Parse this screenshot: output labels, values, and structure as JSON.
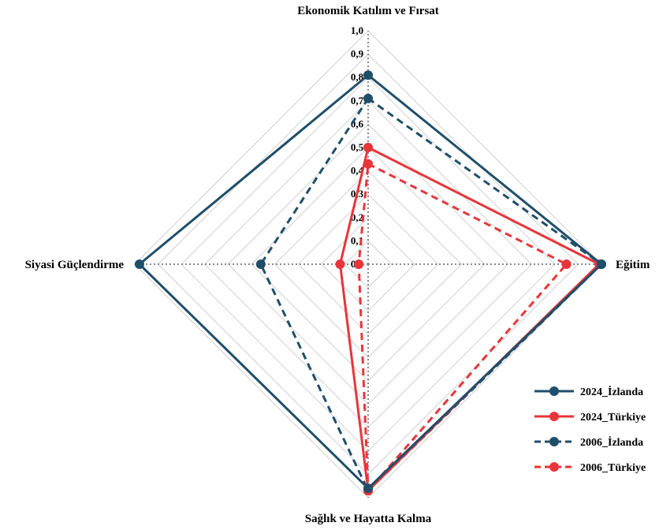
{
  "chart_data": {
    "type": "radar",
    "title": "",
    "axes": [
      "Ekonomik Katılım ve Fırsat",
      "Eğitim",
      "Sağlık ve Hayatta Kalma",
      "Siyasi Güçlendirme"
    ],
    "rlim": [
      0,
      1
    ],
    "ticks": [
      "0,0",
      "0,1",
      "0,2",
      "0,3",
      "0,4",
      "0,5",
      "0,6",
      "0,7",
      "0,8",
      "0,9",
      "1,0"
    ],
    "grid": true,
    "legend_position": "bottom-right",
    "series": [
      {
        "name": "2024_İzlanda",
        "values": [
          0.81,
          1.0,
          0.96,
          0.98
        ],
        "color": "#1f4e69",
        "dash": "solid"
      },
      {
        "name": "2024_Türkiye",
        "values": [
          0.5,
          0.99,
          0.97,
          0.12
        ],
        "color": "#e8353a",
        "dash": "solid"
      },
      {
        "name": "2006_İzlanda",
        "values": [
          0.71,
          1.0,
          0.97,
          0.46
        ],
        "color": "#1f4e69",
        "dash": "dashed"
      },
      {
        "name": "2006_Türkiye",
        "values": [
          0.43,
          0.85,
          0.97,
          0.04
        ],
        "color": "#e8353a",
        "dash": "dashed"
      }
    ]
  }
}
